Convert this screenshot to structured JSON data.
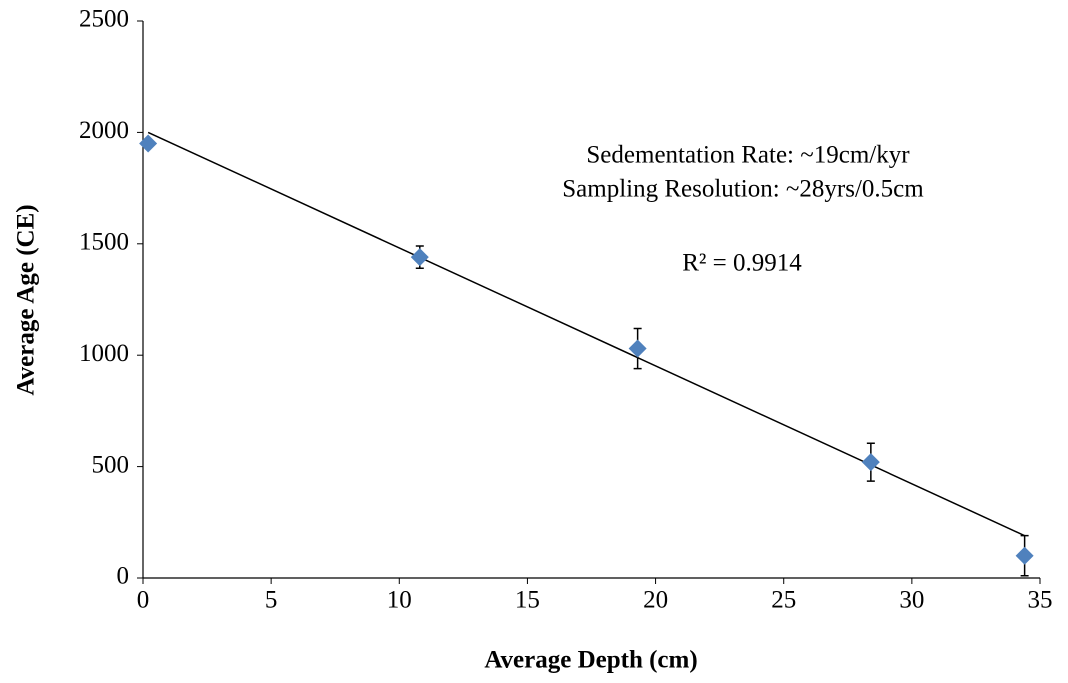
{
  "chart_data": {
    "type": "scatter",
    "xlabel": "Average Depth (cm)",
    "ylabel": "Average Age (CE)",
    "series": [
      {
        "color": "#4f81bd",
        "marker": "diamond",
        "x": [
          0.2,
          10.8,
          19.3,
          28.4,
          34.4
        ],
        "y": [
          1950,
          1440,
          1030,
          520,
          100
        ],
        "errors": [
          null,
          50,
          90,
          85,
          90
        ]
      }
    ],
    "trendline": {
      "color": "#000000",
      "x": [
        0.2,
        34.4
      ],
      "y": [
        2000,
        190
      ]
    },
    "annotations": [
      "Sedementation Rate:  ~19cm/kyr",
      "Sampling Resolution: ~28yrs/0.5cm",
      "R² = 0.9914"
    ],
    "xlim": [
      0,
      35
    ],
    "xticks": [
      0,
      5,
      10,
      15,
      20,
      25,
      30,
      35
    ],
    "ylim": [
      0,
      2500
    ],
    "yticks": [
      0,
      500,
      1000,
      1500,
      2000,
      2500
    ],
    "grid": false
  }
}
